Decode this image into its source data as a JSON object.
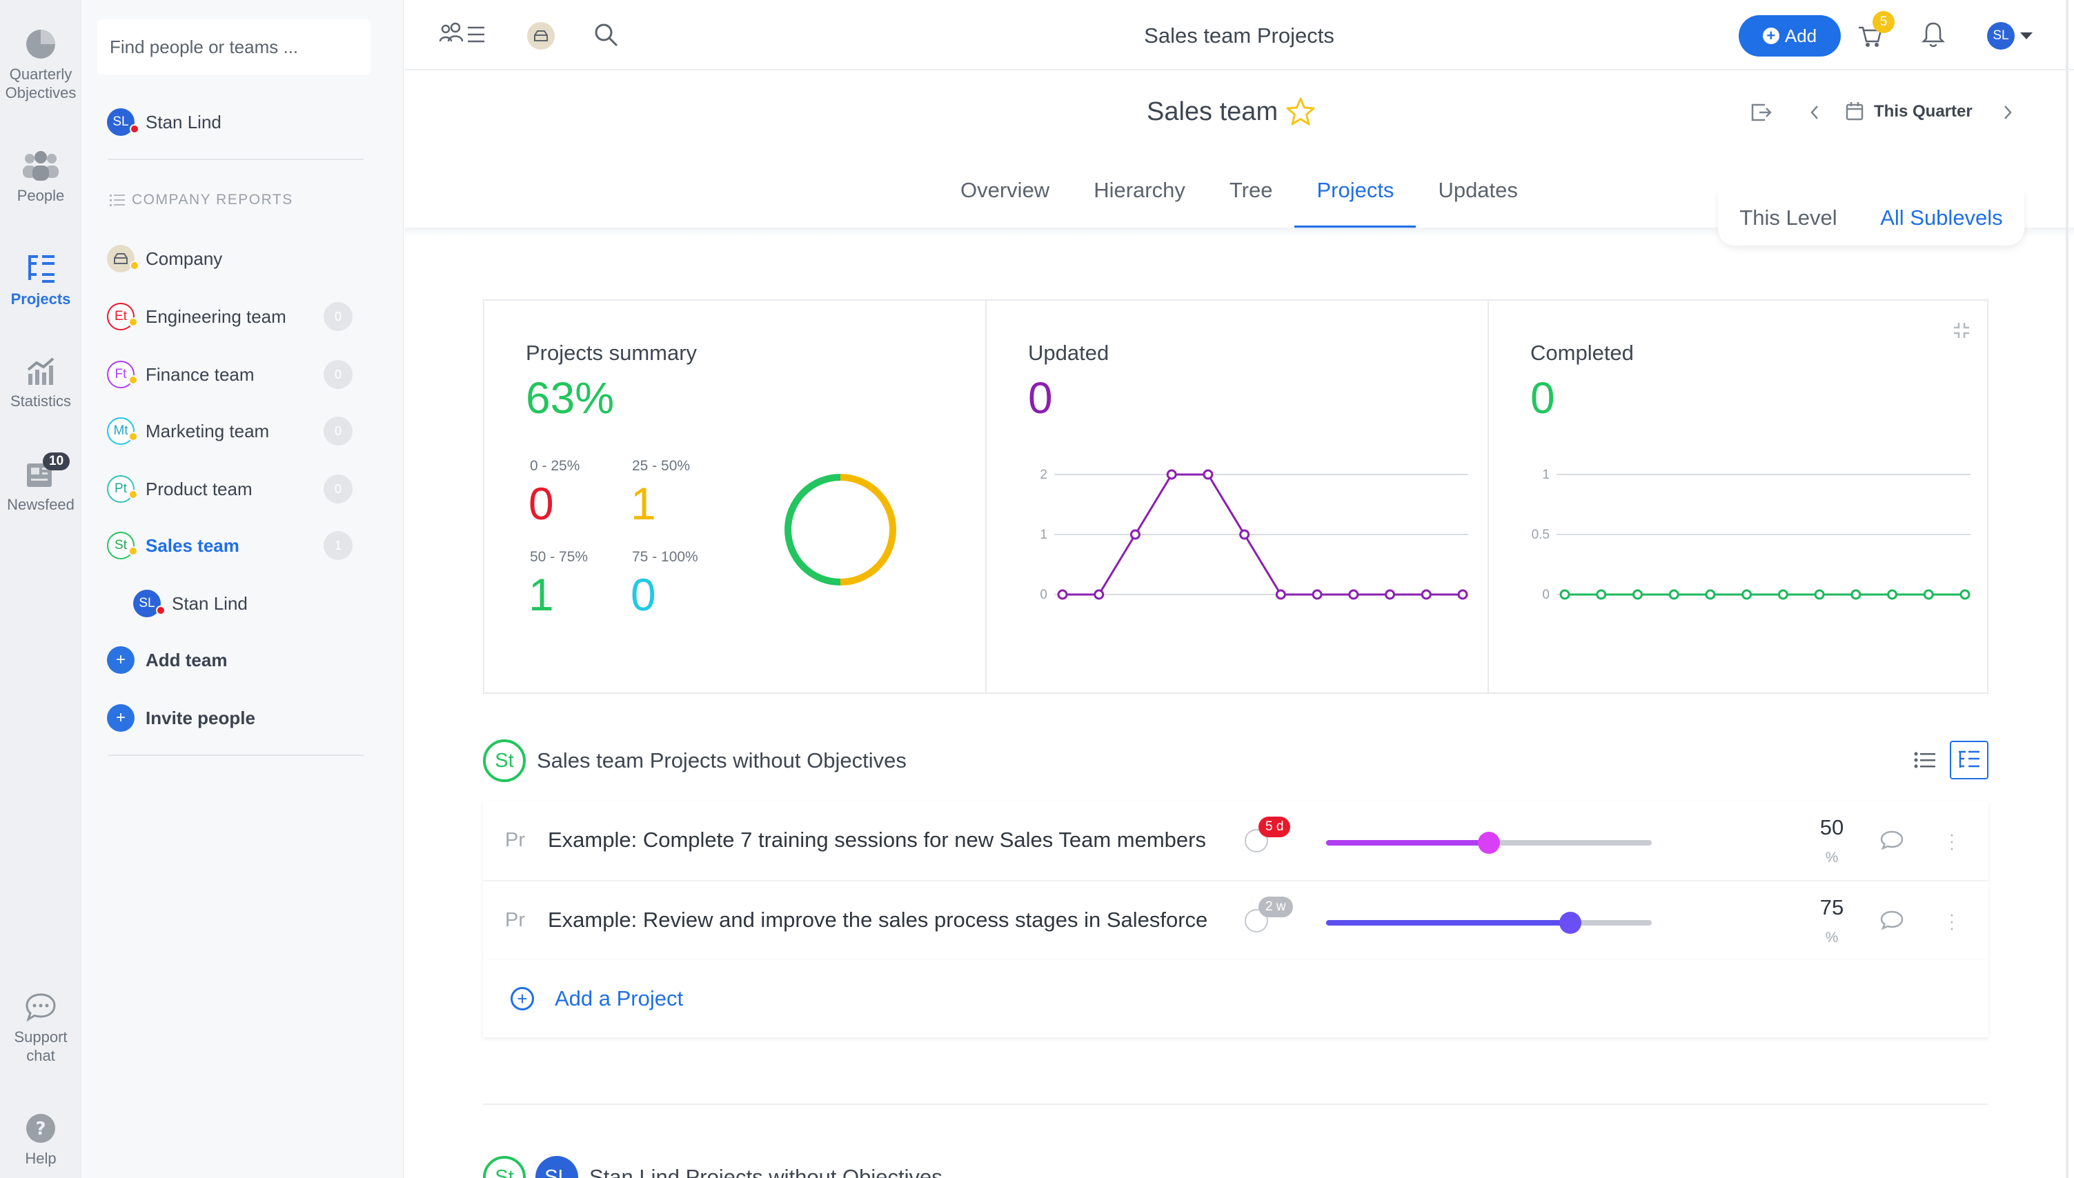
{
  "rail": {
    "items": [
      {
        "label1": "Quarterly",
        "label2": "Objectives"
      },
      {
        "label1": "People",
        "label2": ""
      },
      {
        "label1": "Projects",
        "label2": ""
      },
      {
        "label1": "Statistics",
        "label2": ""
      },
      {
        "label1": "Newsfeed",
        "label2": "",
        "badge": "10"
      },
      {
        "label1": "Support",
        "label2": "chat"
      },
      {
        "label1": "Help",
        "label2": ""
      }
    ]
  },
  "sidebar": {
    "search_placeholder": "Find people or teams ...",
    "user": {
      "initials": "SL",
      "name": "Stan Lind"
    },
    "section_header": "COMPANY REPORTS",
    "teams": [
      {
        "initials": "",
        "name": "Company",
        "badge": ""
      },
      {
        "initials": "Et",
        "name": "Engineering team",
        "badge": "0"
      },
      {
        "initials": "Ft",
        "name": "Finance team",
        "badge": "0"
      },
      {
        "initials": "Mt",
        "name": "Marketing team",
        "badge": "0"
      },
      {
        "initials": "Pt",
        "name": "Product team",
        "badge": "0"
      },
      {
        "initials": "St",
        "name": "Sales team",
        "badge": "1"
      }
    ],
    "member": {
      "initials": "SL",
      "name": "Stan Lind"
    },
    "add_team": "Add team",
    "invite_people": "Invite people"
  },
  "topbar": {
    "title": "Sales team Projects",
    "add_label": "Add",
    "cart_badge": "5",
    "avatar_initials": "SL"
  },
  "header": {
    "team_name": "Sales team",
    "period": "This Quarter",
    "tabs": [
      "Overview",
      "Hierarchy",
      "Tree",
      "Projects",
      "Updates"
    ],
    "active_tab": "Projects",
    "level_toggle": {
      "this_level": "This Level",
      "all_sublevels": "All Sublevels"
    }
  },
  "summary": {
    "projects_summary": {
      "title": "Projects summary",
      "value": "63%",
      "ranges": [
        {
          "label": "0 - 25%",
          "value": "0",
          "color": "#e8192c"
        },
        {
          "label": "25 - 50%",
          "value": "1",
          "color": "#f5b800"
        },
        {
          "label": "50 - 75%",
          "value": "1",
          "color": "#22c55e"
        },
        {
          "label": "75 - 100%",
          "value": "0",
          "color": "#22c8e6"
        }
      ]
    },
    "updated": {
      "title": "Updated",
      "value": "0"
    },
    "completed": {
      "title": "Completed",
      "value": "0"
    }
  },
  "chart_data": [
    {
      "type": "pie",
      "title": "",
      "slices": [
        {
          "name": "",
          "value": 1,
          "color": "#22c55e"
        },
        {
          "name": "",
          "value": 1,
          "color": "#f5b800"
        }
      ]
    },
    {
      "type": "line",
      "title": "",
      "x": [
        1,
        2,
        3,
        4,
        5,
        6,
        7,
        8,
        9,
        10,
        11,
        12
      ],
      "series": [
        {
          "values": [
            0,
            0,
            1,
            2,
            2,
            1,
            0,
            0,
            0,
            0,
            0,
            0
          ],
          "color": "#8a1fb0"
        }
      ],
      "yticks": [
        "0",
        "1",
        "2"
      ],
      "ylim": [
        0,
        2
      ]
    },
    {
      "type": "line",
      "title": "",
      "x": [
        1,
        2,
        3,
        4,
        5,
        6,
        7,
        8,
        9,
        10,
        11,
        12
      ],
      "series": [
        {
          "values": [
            0,
            0,
            0,
            0,
            0,
            0,
            0,
            0,
            0,
            0,
            0,
            0
          ],
          "color": "#1cb85c"
        }
      ],
      "yticks": [
        "0",
        "0.5",
        "1"
      ],
      "ylim": [
        0,
        1
      ]
    }
  ],
  "projects_section": {
    "initials": "St",
    "title": "Sales team Projects without Objectives",
    "rows": [
      {
        "prefix": "Pr",
        "name": "Example: Complete 7 training sessions for new Sales Team members",
        "due": "5 d",
        "due_color": "#e8192c",
        "progress": 0.5,
        "fill_color": "#b03df0",
        "knob_color": "#d940f5",
        "percent": "50",
        "percent_sign": "%"
      },
      {
        "prefix": "Pr",
        "name": "Example: Review and improve the sales process stages in Salesforce",
        "due": "2 w",
        "due_color": "#b8bcc2",
        "progress": 0.75,
        "fill_color": "#5b4ff0",
        "knob_color": "#6a4ff5",
        "percent": "75",
        "percent_sign": "%"
      }
    ],
    "add_project": "Add a Project"
  },
  "member_section": {
    "team_initials": "St",
    "user_initials": "SL",
    "title": "Stan Lind Projects without Objectives"
  }
}
